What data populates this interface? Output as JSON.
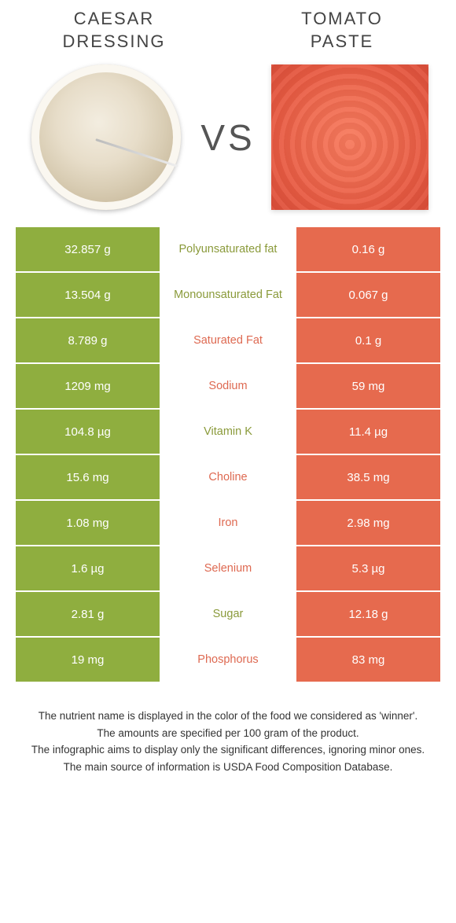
{
  "colors": {
    "left": "#8fae3f",
    "right": "#e66a4e",
    "left_text": "#8a9a3a",
    "right_text": "#de6951",
    "background": "#ffffff"
  },
  "header": {
    "left_title": "CAESAR\nDRESSING",
    "right_title": "TOMATO\nPASTE",
    "vs": "VS"
  },
  "rows": [
    {
      "left": "32.857 g",
      "label": "Polyunsaturated fat",
      "right": "0.16 g",
      "winner": "left"
    },
    {
      "left": "13.504 g",
      "label": "Monounsaturated Fat",
      "right": "0.067 g",
      "winner": "left"
    },
    {
      "left": "8.789 g",
      "label": "Saturated Fat",
      "right": "0.1 g",
      "winner": "right"
    },
    {
      "left": "1209 mg",
      "label": "Sodium",
      "right": "59 mg",
      "winner": "right"
    },
    {
      "left": "104.8 µg",
      "label": "Vitamin K",
      "right": "11.4 µg",
      "winner": "left"
    },
    {
      "left": "15.6 mg",
      "label": "Choline",
      "right": "38.5 mg",
      "winner": "right"
    },
    {
      "left": "1.08 mg",
      "label": "Iron",
      "right": "2.98 mg",
      "winner": "right"
    },
    {
      "left": "1.6 µg",
      "label": "Selenium",
      "right": "5.3 µg",
      "winner": "right"
    },
    {
      "left": "2.81 g",
      "label": "Sugar",
      "right": "12.18 g",
      "winner": "left"
    },
    {
      "left": "19 mg",
      "label": "Phosphorus",
      "right": "83 mg",
      "winner": "right"
    }
  ],
  "footnotes": [
    "The nutrient name is displayed in the color of the food we considered as 'winner'.",
    "The amounts are specified per 100 gram of the product.",
    "The infographic aims to display only the significant differences, ignoring minor ones.",
    "The main source of information is USDA Food Composition Database."
  ]
}
